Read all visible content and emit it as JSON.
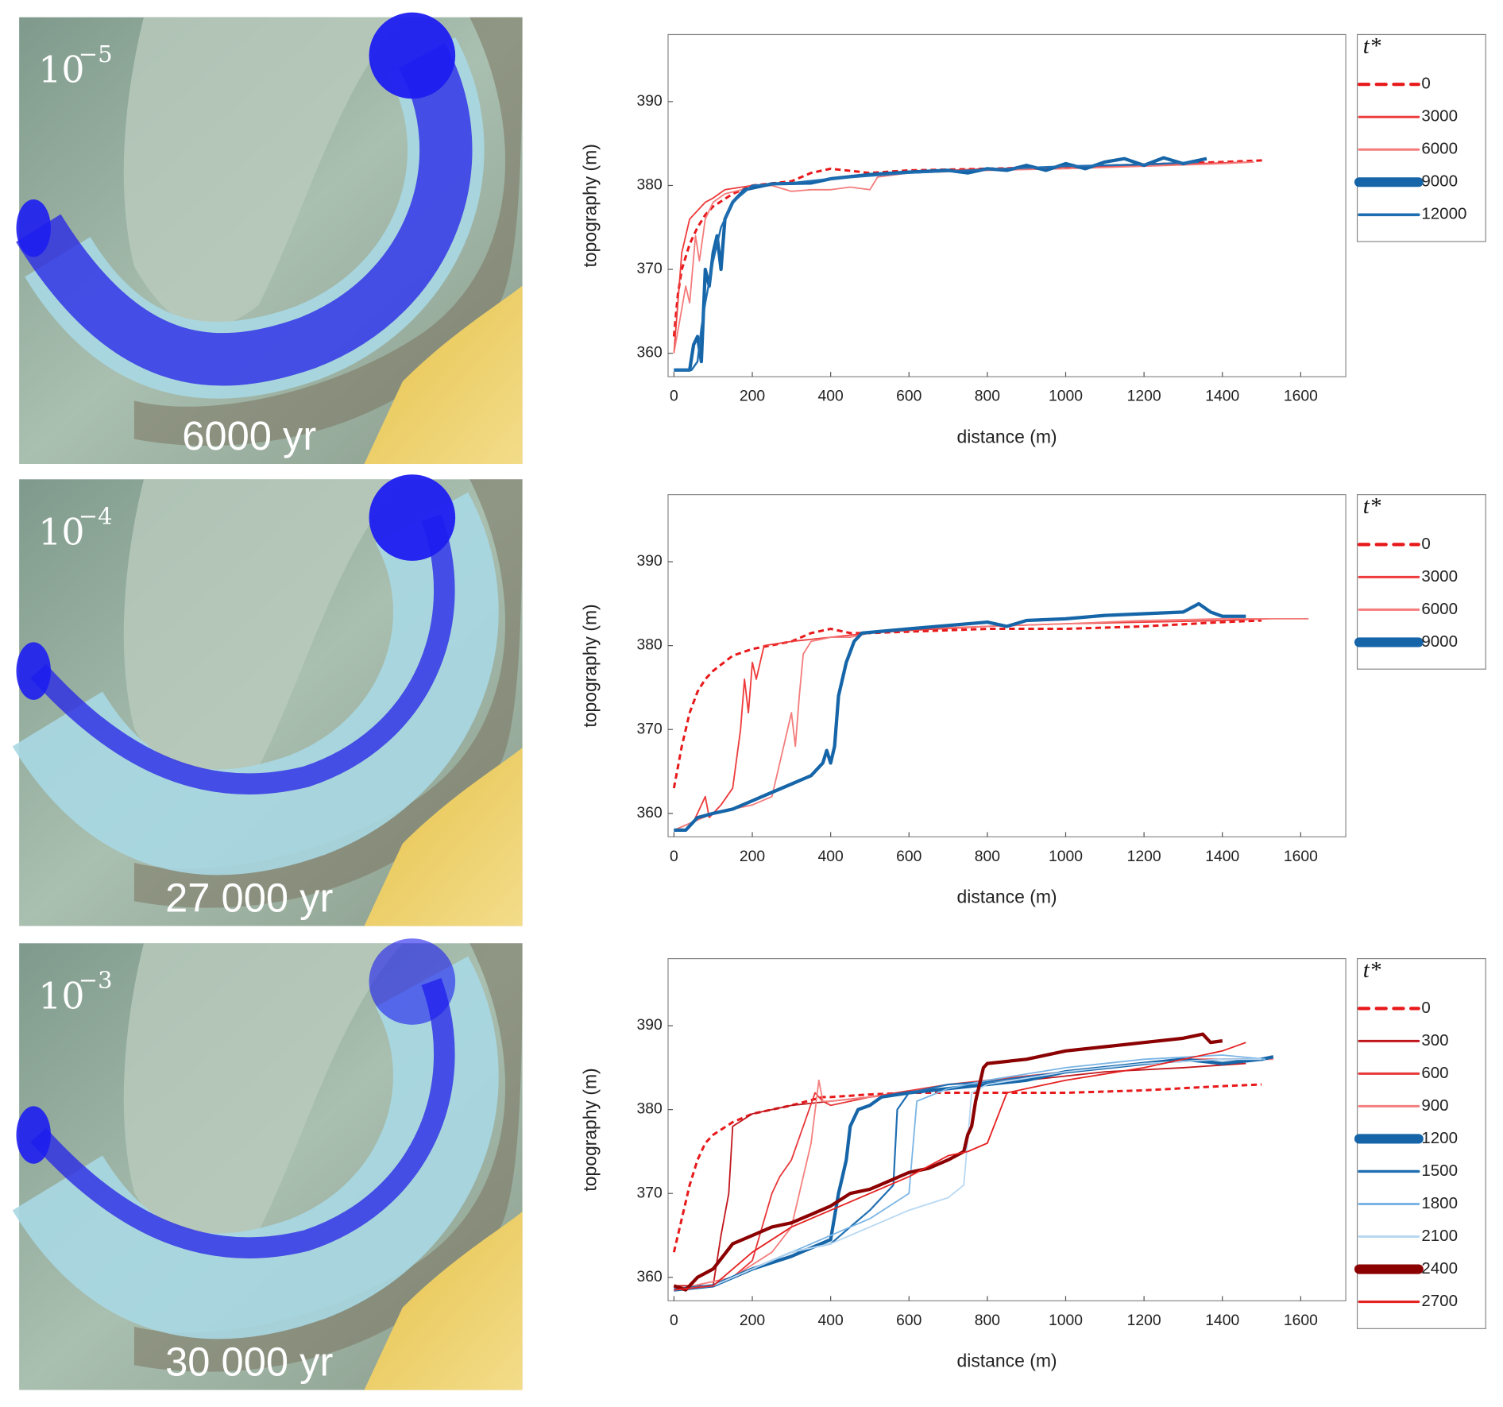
{
  "maps": [
    {
      "base": "10",
      "exponent": "−5",
      "age": "6000 yr"
    },
    {
      "base": "10",
      "exponent": "−4",
      "age": "27 000 yr"
    },
    {
      "base": "10",
      "exponent": "−3",
      "age": "30 000 yr"
    }
  ],
  "chart_data": [
    {
      "type": "line",
      "xlabel": "distance (m)",
      "ylabel": "topography (m)",
      "legend_title": "t*",
      "xlim": [
        -15,
        1715
      ],
      "ylim": [
        357.2,
        398
      ],
      "xticks": [
        0,
        200,
        400,
        600,
        800,
        1000,
        1200,
        1400,
        1600
      ],
      "yticks": [
        360,
        370,
        380,
        390
      ],
      "series": [
        {
          "name": "0",
          "color": "#e8191b",
          "width": 2.5,
          "dash": true,
          "x": [
            0,
            10,
            20,
            40,
            60,
            80,
            100,
            150,
            200,
            300,
            350,
            400,
            500,
            600,
            800,
            1000,
            1200,
            1400,
            1510
          ],
          "values": [
            362,
            367,
            370,
            373,
            375,
            376.5,
            377.5,
            379,
            380,
            380.5,
            381.5,
            382,
            381.5,
            381.8,
            382,
            382.2,
            382.5,
            382.8,
            383
          ]
        },
        {
          "name": "3000",
          "color": "#ee3b3b",
          "width": 1.5,
          "dash": false,
          "x": [
            0,
            10,
            20,
            40,
            60,
            80,
            100,
            130,
            200,
            300,
            400,
            500,
            600,
            800,
            1000,
            1200,
            1400,
            1480
          ],
          "values": [
            360,
            366,
            372,
            376,
            377,
            378,
            378.5,
            379.5,
            380,
            380.3,
            380.8,
            381.3,
            381.6,
            382,
            382.2,
            382.4,
            382.7,
            382.8
          ]
        },
        {
          "name": "6000",
          "color": "#f47c7c",
          "width": 1.5,
          "dash": false,
          "x": [
            0,
            15,
            30,
            40,
            55,
            65,
            80,
            100,
            130,
            200,
            250,
            300,
            350,
            400,
            450,
            500,
            520,
            600,
            800,
            1000,
            1200,
            1400,
            1480
          ],
          "values": [
            360,
            364,
            368,
            366,
            374,
            371,
            376,
            378,
            379,
            379.8,
            380,
            379.3,
            379.5,
            379.5,
            379.8,
            379.5,
            381,
            381.5,
            381.8,
            382,
            382.3,
            382.6,
            382.8
          ]
        },
        {
          "name": "9000",
          "color": "#1565a8",
          "width": 3.5,
          "dash": false,
          "x": [
            0,
            20,
            40,
            50,
            60,
            70,
            80,
            90,
            100,
            110,
            120,
            130,
            150,
            180,
            250,
            350,
            400,
            500,
            600,
            700,
            750,
            800,
            850,
            900,
            950,
            1000,
            1050,
            1100,
            1150,
            1200,
            1250,
            1300,
            1360
          ],
          "values": [
            358,
            358,
            358,
            361,
            362,
            359,
            370,
            368,
            372,
            374,
            370,
            376,
            378,
            379.5,
            380.2,
            380.3,
            380.8,
            381.3,
            381.6,
            381.8,
            381.5,
            382,
            381.8,
            382.4,
            381.8,
            382.6,
            382,
            382.8,
            383.2,
            382.4,
            383.3,
            382.6,
            383.2
          ]
        },
        {
          "name": "12000",
          "color": "#1f6eb2",
          "width": 2,
          "dash": false,
          "x": [
            0,
            30,
            45,
            60,
            70,
            80,
            100,
            120,
            150,
            200,
            300,
            400,
            600,
            800,
            1000,
            1200,
            1340
          ],
          "values": [
            358,
            358,
            358,
            359,
            363,
            366,
            371,
            375,
            378,
            380,
            380.3,
            380.8,
            381.5,
            381.9,
            382.3,
            382.5,
            382.8
          ]
        }
      ]
    },
    {
      "type": "line",
      "xlabel": "distance (m)",
      "ylabel": "topography (m)",
      "legend_title": "t*",
      "xlim": [
        -15,
        1715
      ],
      "ylim": [
        357.2,
        398
      ],
      "xticks": [
        0,
        200,
        400,
        600,
        800,
        1000,
        1200,
        1400,
        1600
      ],
      "yticks": [
        360,
        370,
        380,
        390
      ],
      "series": [
        {
          "name": "0",
          "color": "#e8191b",
          "width": 2.5,
          "dash": true,
          "x": [
            0,
            20,
            40,
            60,
            80,
            100,
            150,
            200,
            300,
            350,
            400,
            450,
            500,
            800,
            1000,
            1200,
            1400,
            1500
          ],
          "values": [
            363,
            368,
            372,
            374.5,
            376,
            377,
            378.8,
            379.6,
            380.5,
            381.5,
            382,
            381.5,
            381.5,
            382,
            382,
            382.3,
            382.8,
            383
          ]
        },
        {
          "name": "3000",
          "color": "#ee3b3b",
          "width": 1.5,
          "dash": false,
          "x": [
            0,
            50,
            80,
            90,
            120,
            150,
            170,
            180,
            190,
            200,
            210,
            230,
            300,
            400,
            500,
            600,
            800,
            1000,
            1200,
            1400,
            1520
          ],
          "values": [
            358,
            359,
            362,
            359.5,
            361,
            363,
            370,
            376,
            372,
            378,
            376,
            380,
            380.5,
            381,
            381.5,
            381.8,
            382.3,
            382.6,
            382.8,
            383,
            383.2
          ]
        },
        {
          "name": "6000",
          "color": "#f47c7c",
          "width": 1.5,
          "dash": false,
          "x": [
            0,
            100,
            150,
            200,
            250,
            280,
            300,
            310,
            320,
            330,
            350,
            400,
            450,
            500,
            600,
            800,
            1000,
            1200,
            1400,
            1620
          ],
          "values": [
            358,
            360,
            360.5,
            361,
            362,
            368,
            372,
            368,
            374,
            379,
            380.5,
            381,
            381,
            381.5,
            382,
            382.3,
            382.6,
            383,
            383.2,
            383.2
          ]
        },
        {
          "name": "9000",
          "color": "#1565a8",
          "width": 3.5,
          "dash": false,
          "x": [
            0,
            30,
            60,
            100,
            150,
            200,
            250,
            300,
            350,
            380,
            390,
            400,
            410,
            420,
            440,
            460,
            480,
            600,
            800,
            850,
            900,
            1000,
            1100,
            1200,
            1300,
            1340,
            1370,
            1400,
            1460
          ],
          "values": [
            358,
            358,
            359.5,
            360,
            360.5,
            361.5,
            362.5,
            363.5,
            364.5,
            366,
            367.5,
            366,
            368,
            374,
            378,
            380.5,
            381.5,
            382,
            382.8,
            382.3,
            383,
            383.2,
            383.6,
            383.8,
            384,
            385,
            384,
            383.5,
            383.5
          ]
        }
      ]
    },
    {
      "type": "line",
      "xlabel": "distance (m)",
      "ylabel": "topography (m)",
      "legend_title": "t*",
      "xlim": [
        -15,
        1715
      ],
      "ylim": [
        357.2,
        398
      ],
      "xticks": [
        0,
        200,
        400,
        600,
        800,
        1000,
        1200,
        1400,
        1600
      ],
      "yticks": [
        360,
        370,
        380,
        390
      ],
      "series": [
        {
          "name": "0",
          "color": "#e8191b",
          "width": 2.5,
          "dash": true,
          "x": [
            0,
            20,
            40,
            60,
            80,
            100,
            150,
            200,
            300,
            380,
            400,
            500,
            600,
            800,
            1000,
            1200,
            1400,
            1500
          ],
          "values": [
            363,
            367,
            371,
            374,
            376,
            377,
            378.5,
            379.5,
            380.5,
            381.5,
            381.5,
            381.8,
            382,
            382,
            382,
            382.3,
            382.8,
            383
          ]
        },
        {
          "name": "300",
          "color": "#c0171d",
          "width": 1.5,
          "dash": false,
          "x": [
            0,
            100,
            120,
            140,
            150,
            200,
            300,
            400,
            500,
            700,
            900,
            1100,
            1300,
            1460
          ],
          "values": [
            359,
            359,
            365,
            370,
            378,
            379.5,
            380.5,
            381,
            381.5,
            382.5,
            383.5,
            384.5,
            385,
            385.5
          ]
        },
        {
          "name": "600",
          "color": "#e8373a",
          "width": 1.5,
          "dash": false,
          "x": [
            0,
            100,
            150,
            200,
            250,
            270,
            300,
            330,
            360,
            380,
            400,
            500,
            700,
            900,
            1100,
            1300,
            1460
          ],
          "values": [
            358.5,
            359,
            360,
            362,
            370,
            372,
            374,
            378,
            382,
            381,
            380.5,
            381.5,
            383,
            384,
            385,
            386,
            386
          ]
        },
        {
          "name": "900",
          "color": "#f4807f",
          "width": 1.5,
          "dash": false,
          "x": [
            0,
            150,
            250,
            300,
            330,
            350,
            370,
            380,
            400,
            500,
            600,
            800,
            1000,
            1200,
            1400,
            1530
          ],
          "values": [
            358.5,
            360,
            363,
            366,
            372,
            376,
            383.5,
            381,
            381,
            381.5,
            382,
            383,
            384.5,
            385.5,
            386,
            386
          ]
        },
        {
          "name": "1200",
          "color": "#1565a8",
          "width": 3.5,
          "dash": false,
          "x": [
            0,
            100,
            200,
            300,
            400,
            420,
            430,
            440,
            450,
            470,
            500,
            530,
            600,
            700,
            800,
            900,
            1000,
            1100,
            1200,
            1300,
            1400,
            1500,
            1530
          ],
          "values": [
            358.5,
            359,
            361,
            362.5,
            364.5,
            370,
            372,
            374,
            378,
            380,
            380.5,
            381.5,
            382,
            382.5,
            383,
            383.5,
            384.5,
            385,
            385.5,
            386,
            385.5,
            386,
            386.3
          ]
        },
        {
          "name": "1500",
          "color": "#1f6eb2",
          "width": 1.8,
          "dash": false,
          "x": [
            0,
            100,
            200,
            300,
            400,
            450,
            500,
            560,
            570,
            600,
            700,
            800,
            1000,
            1200,
            1400,
            1510
          ],
          "values": [
            358.5,
            359,
            361,
            363,
            364,
            366,
            368,
            371,
            380,
            382,
            383,
            383.3,
            384.5,
            385.5,
            386,
            386
          ]
        },
        {
          "name": "1800",
          "color": "#7bb5e5",
          "width": 1.5,
          "dash": false,
          "x": [
            0,
            100,
            200,
            300,
            400,
            500,
            600,
            620,
            700,
            800,
            1000,
            1200,
            1400,
            1510
          ],
          "values": [
            358.5,
            359,
            361,
            363,
            365,
            367,
            370,
            381,
            382.5,
            383.5,
            385,
            386,
            386.5,
            386
          ]
        },
        {
          "name": "2100",
          "color": "#b8d8f2",
          "width": 1.5,
          "dash": false,
          "x": [
            0,
            100,
            200,
            300,
            400,
            500,
            600,
            700,
            740,
            760,
            800,
            1000,
            1200,
            1400,
            1500
          ],
          "values": [
            358.5,
            359,
            361,
            363,
            364,
            366,
            368,
            369.5,
            371,
            382,
            383,
            384.5,
            385.5,
            386,
            386
          ]
        },
        {
          "name": "2400",
          "color": "#8b0000",
          "width": 3.5,
          "dash": false,
          "x": [
            0,
            30,
            60,
            100,
            150,
            200,
            250,
            300,
            350,
            400,
            450,
            500,
            550,
            600,
            650,
            700,
            740,
            750,
            760,
            770,
            780,
            790,
            800,
            900,
            1000,
            1100,
            1200,
            1300,
            1350,
            1370,
            1400
          ],
          "values": [
            359,
            358.5,
            360,
            361,
            364,
            365,
            366,
            366.5,
            367.5,
            368.5,
            370,
            370.5,
            371.5,
            372.5,
            373,
            374,
            375,
            377,
            378,
            381,
            383,
            385,
            385.5,
            386,
            387,
            387.5,
            388,
            388.5,
            389,
            388,
            388.2
          ]
        },
        {
          "name": "2700",
          "color": "#e52222",
          "width": 1.5,
          "dash": false,
          "x": [
            0,
            100,
            200,
            300,
            400,
            500,
            600,
            700,
            750,
            800,
            850,
            900,
            1000,
            1200,
            1400,
            1460
          ],
          "values": [
            358.5,
            359,
            363,
            366,
            368,
            370,
            372,
            374.5,
            375,
            376,
            382,
            382.5,
            383.5,
            385,
            387,
            388
          ]
        }
      ]
    }
  ]
}
